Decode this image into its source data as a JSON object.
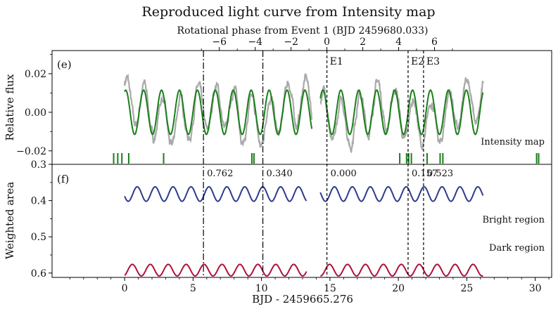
{
  "chart_data": [
    {
      "type": "line",
      "panel_label": "(e)",
      "title": "Reproduced light curve from Intensity map",
      "top_axis_label": "Rotational phase from Event 1 (BJD 2459680.033)",
      "top_ticks": [
        -6,
        -4,
        -2,
        0,
        2,
        4,
        6
      ],
      "top_tick_labels": [
        "−6",
        "−4",
        "−2",
        "0",
        "2",
        "4",
        "6"
      ],
      "ylabel": "Relative flux",
      "ylim": [
        -0.027,
        0.032
      ],
      "yticks": [
        -0.02,
        0.0,
        0.02
      ],
      "ytick_labels": [
        "−0.02",
        "0.00",
        "0.02"
      ],
      "series": [
        {
          "name": "Observed light curve",
          "color": "#aaaaaa"
        },
        {
          "name": "Intensity map",
          "color": "#1a7f1a",
          "period": 1.31,
          "amplitude": 0.0115,
          "segments": [
            [
              0.0,
              13.7
            ],
            [
              14.3,
              26.2
            ]
          ]
        }
      ],
      "legend_text": "Intensity map",
      "tick_marks_x": [
        -0.8,
        -0.5,
        -0.2,
        0.3,
        2.85,
        9.3,
        9.45,
        20.1,
        20.6,
        20.75,
        20.95,
        22.1,
        23.05,
        23.25,
        30.1,
        30.25
      ],
      "event_lines": [
        {
          "x": 14.78,
          "label": "E1",
          "style": "dashed"
        },
        {
          "x": 20.71,
          "label": "E2",
          "style": "dashed"
        },
        {
          "x": 21.84,
          "label": "E3",
          "style": "dashed"
        },
        {
          "x": 5.76,
          "label": "",
          "style": "dashdot"
        },
        {
          "x": 10.1,
          "label": "",
          "style": "dashdot"
        }
      ]
    },
    {
      "type": "line",
      "panel_label": "(f)",
      "ylabel": "Weighted area",
      "xlabel": "BJD - 2459665.276",
      "xlim": [
        -5.3,
        31.2
      ],
      "xticks": [
        0,
        5,
        10,
        15,
        20,
        25,
        30
      ],
      "ylim": [
        0.3,
        0.612
      ],
      "yticks": [
        0.3,
        0.4,
        0.5,
        0.6
      ],
      "ytick_labels": [
        "0.3",
        "0.4",
        "0.5",
        "0.6"
      ],
      "y_inverted": true,
      "series": [
        {
          "name": "Bright region",
          "color": "#2e3a8c",
          "center": 0.382,
          "amplitude": 0.02,
          "period": 1.31,
          "segments": [
            [
              0.0,
              13.3
            ],
            [
              14.3,
              26.2
            ]
          ]
        },
        {
          "name": "Dark region",
          "color": "#b0103a",
          "center": 0.592,
          "amplitude": 0.016,
          "period": 1.31,
          "segments": [
            [
              0.0,
              13.3
            ],
            [
              14.3,
              26.2
            ]
          ]
        }
      ],
      "series_labels": [
        "Bright region",
        "Dark region"
      ],
      "phase_annotations": [
        {
          "x": 5.76,
          "text": "0.762",
          "style": "dashdot"
        },
        {
          "x": 10.1,
          "text": "0.340",
          "style": "dashdot"
        },
        {
          "x": 14.78,
          "text": "0.000",
          "style": "dashed"
        },
        {
          "x": 20.71,
          "text": "0.157",
          "style": "dashed"
        },
        {
          "x": 21.84,
          "text": "0.523",
          "style": "dashed"
        }
      ]
    }
  ]
}
